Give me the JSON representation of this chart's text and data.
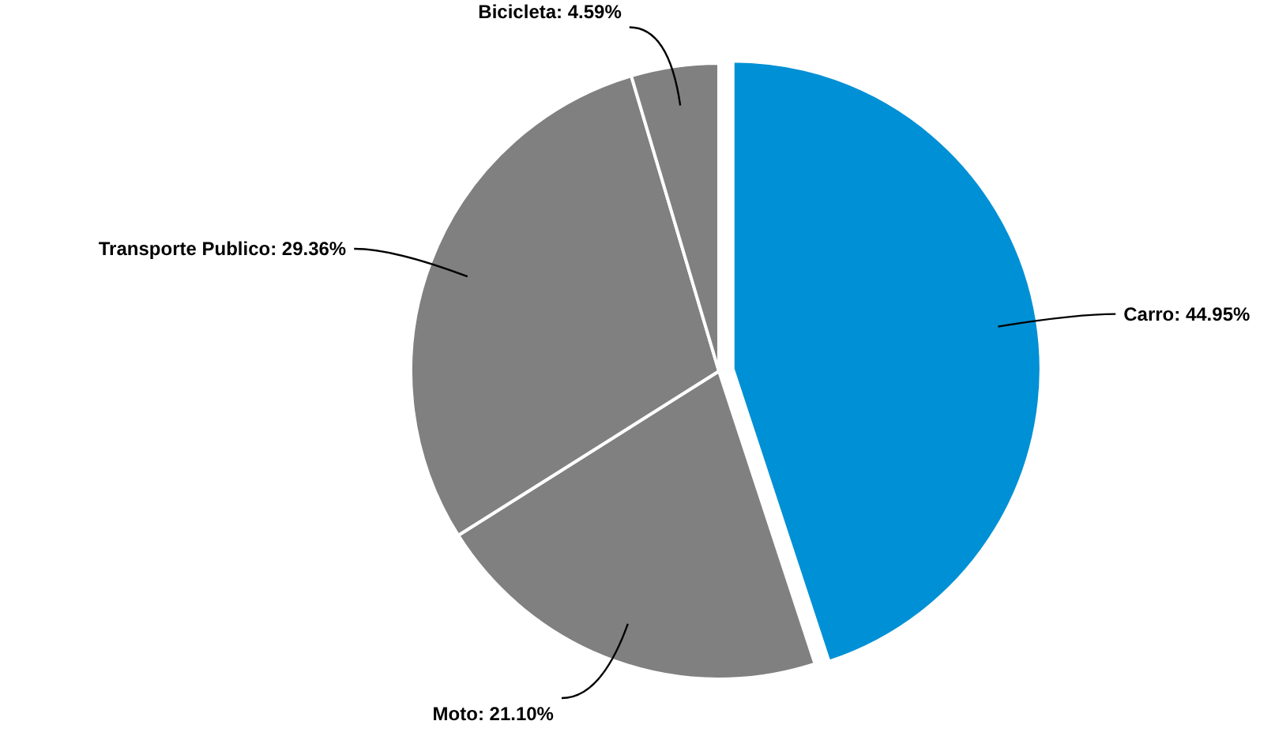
{
  "chart_data": {
    "type": "pie",
    "categories": [
      "Carro",
      "Moto",
      "Transporte Publico",
      "Bicicleta"
    ],
    "values": [
      44.95,
      21.1,
      29.36,
      4.59
    ],
    "colors": [
      "#0090d5",
      "#808080",
      "#808080",
      "#808080"
    ],
    "value_labels": [
      "44.95%",
      "21.10%",
      "29.36%",
      "4.59%"
    ]
  }
}
